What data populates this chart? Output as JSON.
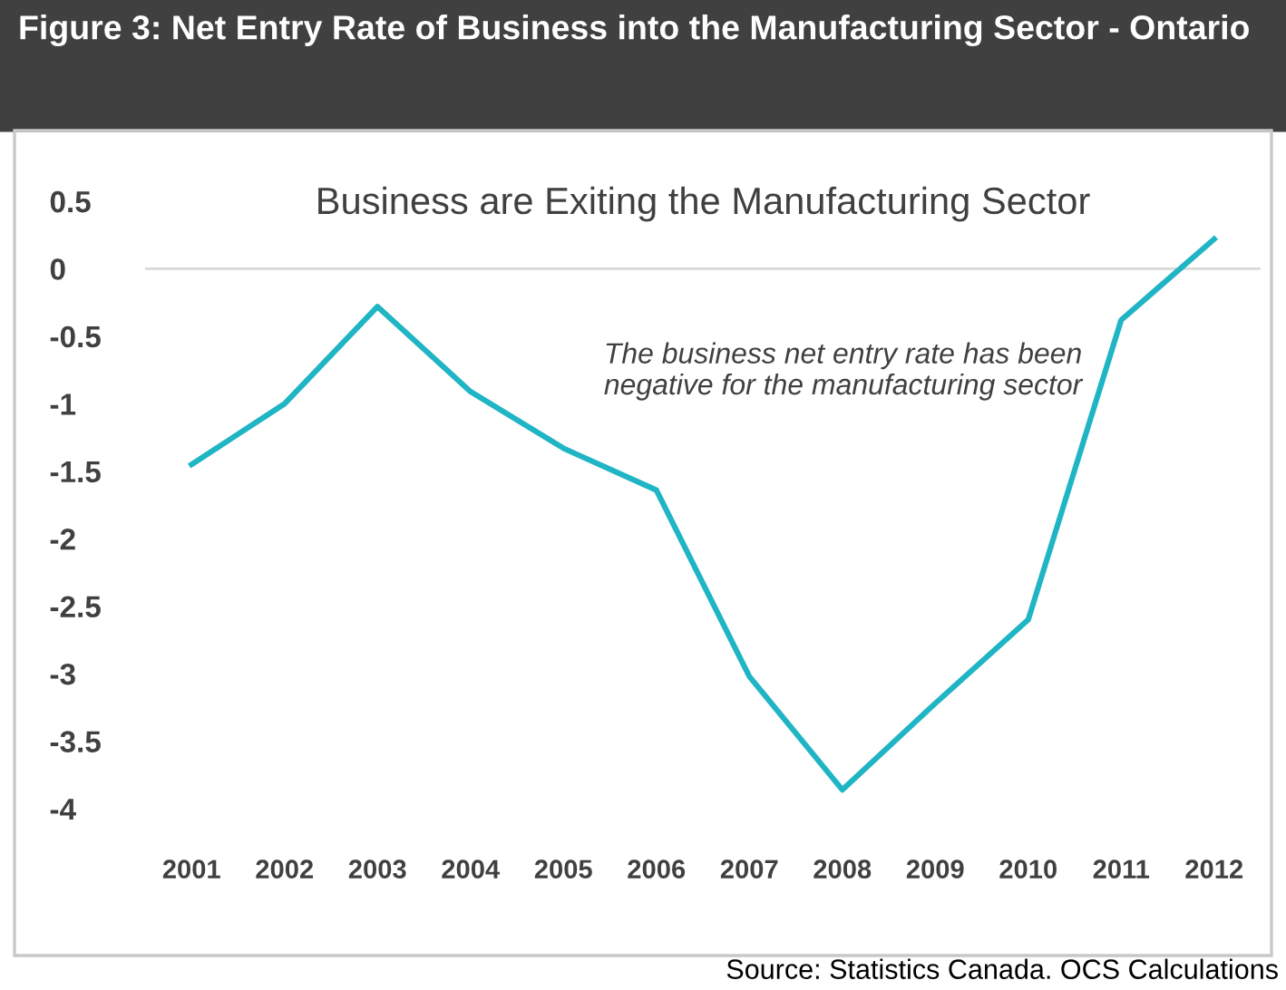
{
  "chart_data": {
    "type": "line",
    "title": "Figure 3: Net Entry Rate of Business into the Manufacturing Sector - Ontario",
    "subtitle": "Business are Exiting the Manufacturing Sector",
    "categories": [
      "2001",
      "2002",
      "2003",
      "2004",
      "2005",
      "2006",
      "2007",
      "2008",
      "2009",
      "2010",
      "2011",
      "2012"
    ],
    "series": [
      {
        "color": "#1fb5c4",
        "values": [
          -1.45,
          -1.0,
          -0.28,
          -0.91,
          -1.33,
          -1.64,
          -3.02,
          -3.86,
          -3.22,
          -2.6,
          -0.38,
          0.22
        ]
      }
    ],
    "ylim": [
      -4,
      0.5
    ],
    "yticks": [
      0.5,
      0,
      -0.5,
      -1,
      -1.5,
      -2,
      -2.5,
      -3,
      -3.5,
      -4
    ],
    "ref_lines": [
      {
        "axis": "y",
        "value": 0,
        "color": "#d9d9d9"
      }
    ],
    "annotations": [
      "The business net entry rate has been\nnegative for the manufacturing sector",
      "Source: Statistics Canada. OCS Calculations"
    ],
    "grid": false,
    "legend": false,
    "marker": "none",
    "line_style": "solid"
  }
}
